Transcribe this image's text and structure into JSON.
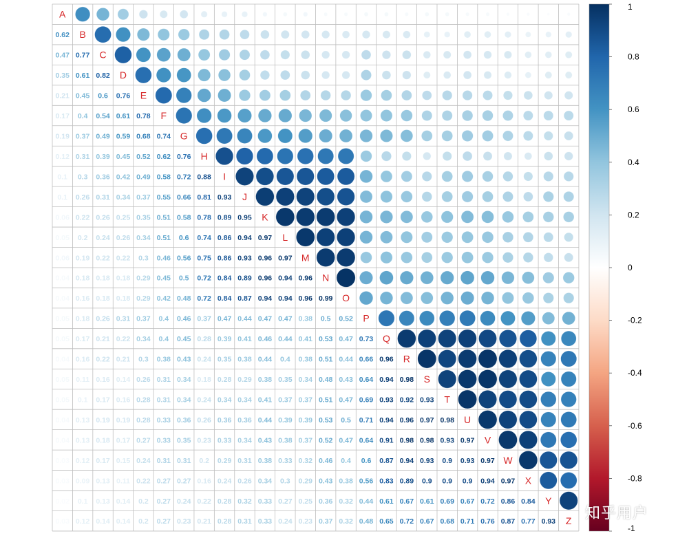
{
  "chart_data": {
    "type": "heatmap",
    "subtype": "correlation-matrix-mixed",
    "upper_method": "circle",
    "lower_method": "number",
    "variables": [
      "A",
      "B",
      "C",
      "D",
      "E",
      "F",
      "G",
      "H",
      "I",
      "J",
      "K",
      "L",
      "M",
      "N",
      "O",
      "P",
      "Q",
      "R",
      "S",
      "T",
      "U",
      "V",
      "W",
      "X",
      "Y",
      "Z"
    ],
    "lower_triangle": [
      [],
      [
        0.62
      ],
      [
        0.47,
        0.77
      ],
      [
        0.35,
        0.61,
        0.82
      ],
      [
        0.21,
        0.45,
        0.6,
        0.76
      ],
      [
        0.17,
        0.4,
        0.54,
        0.61,
        0.78
      ],
      [
        0.19,
        0.37,
        0.49,
        0.59,
        0.68,
        0.74
      ],
      [
        0.12,
        0.31,
        0.39,
        0.45,
        0.52,
        0.62,
        0.76
      ],
      [
        0.1,
        0.3,
        0.36,
        0.42,
        0.49,
        0.58,
        0.72,
        0.88
      ],
      [
        0.1,
        0.26,
        0.31,
        0.34,
        0.37,
        0.55,
        0.66,
        0.81,
        0.93
      ],
      [
        0.06,
        0.22,
        0.26,
        0.25,
        0.35,
        0.51,
        0.58,
        0.78,
        0.89,
        0.95
      ],
      [
        0.05,
        0.2,
        0.24,
        0.26,
        0.34,
        0.51,
        0.6,
        0.74,
        0.86,
        0.94,
        0.97
      ],
      [
        0.06,
        0.19,
        0.22,
        0.22,
        0.3,
        0.46,
        0.56,
        0.75,
        0.86,
        0.93,
        0.96,
        0.97
      ],
      [
        0.04,
        0.18,
        0.18,
        0.18,
        0.29,
        0.45,
        0.5,
        0.72,
        0.84,
        0.89,
        0.96,
        0.94,
        0.96
      ],
      [
        0.04,
        0.16,
        0.18,
        0.18,
        0.29,
        0.42,
        0.48,
        0.72,
        0.84,
        0.87,
        0.94,
        0.94,
        0.96,
        0.99
      ],
      [
        0.05,
        0.18,
        0.26,
        0.31,
        0.37,
        0.4,
        0.46,
        0.37,
        0.47,
        0.44,
        0.47,
        0.47,
        0.38,
        0.5,
        0.52
      ],
      [
        0.05,
        0.17,
        0.21,
        0.22,
        0.34,
        0.4,
        0.45,
        0.28,
        0.39,
        0.41,
        0.46,
        0.44,
        0.41,
        0.53,
        0.47,
        0.73
      ],
      [
        0.04,
        0.16,
        0.22,
        0.21,
        0.3,
        0.38,
        0.43,
        0.24,
        0.35,
        0.38,
        0.44,
        0.4,
        0.38,
        0.51,
        0.44,
        0.66,
        0.96
      ],
      [
        0.05,
        0.11,
        0.16,
        0.14,
        0.26,
        0.31,
        0.34,
        0.18,
        0.28,
        0.29,
        0.38,
        0.35,
        0.34,
        0.48,
        0.43,
        0.64,
        0.94,
        0.98
      ],
      [
        0.05,
        0.1,
        0.17,
        0.16,
        0.28,
        0.31,
        0.34,
        0.24,
        0.34,
        0.34,
        0.41,
        0.37,
        0.37,
        0.51,
        0.47,
        0.69,
        0.93,
        0.92,
        0.93
      ],
      [
        0.04,
        0.13,
        0.19,
        0.19,
        0.28,
        0.33,
        0.36,
        0.26,
        0.36,
        0.36,
        0.44,
        0.39,
        0.39,
        0.53,
        0.5,
        0.71,
        0.94,
        0.96,
        0.97,
        0.98
      ],
      [
        0.04,
        0.13,
        0.18,
        0.17,
        0.27,
        0.33,
        0.35,
        0.23,
        0.33,
        0.34,
        0.43,
        0.38,
        0.37,
        0.52,
        0.47,
        0.64,
        0.91,
        0.98,
        0.98,
        0.93,
        0.97
      ],
      [
        0.03,
        0.12,
        0.17,
        0.15,
        0.24,
        0.31,
        0.31,
        0.2,
        0.29,
        0.31,
        0.38,
        0.33,
        0.32,
        0.46,
        0.4,
        0.6,
        0.87,
        0.94,
        0.93,
        0.9,
        0.93,
        0.97
      ],
      [
        0.03,
        0.09,
        0.13,
        0.11,
        0.22,
        0.27,
        0.27,
        0.16,
        0.24,
        0.26,
        0.34,
        0.3,
        0.29,
        0.43,
        0.38,
        0.56,
        0.83,
        0.89,
        0.9,
        0.9,
        0.9,
        0.94,
        0.97
      ],
      [
        0.02,
        0.1,
        0.13,
        0.14,
        0.2,
        0.27,
        0.24,
        0.22,
        0.28,
        0.32,
        0.33,
        0.27,
        0.25,
        0.36,
        0.32,
        0.44,
        0.61,
        0.67,
        0.61,
        0.69,
        0.67,
        0.72,
        0.86,
        0.84
      ],
      [
        0.03,
        0.12,
        0.14,
        0.14,
        0.2,
        0.27,
        0.23,
        0.21,
        0.28,
        0.31,
        0.33,
        0.24,
        0.23,
        0.37,
        0.32,
        0.48,
        0.65,
        0.72,
        0.67,
        0.68,
        0.71,
        0.76,
        0.87,
        0.77,
        0.93
      ]
    ],
    "colorbar": {
      "ticks": [
        "1",
        "0.8",
        "0.6",
        "0.4",
        "0.2",
        "0",
        "-0.2",
        "-0.4",
        "-0.6",
        "-0.8",
        "-1"
      ],
      "range": [
        -1,
        1
      ],
      "colors": [
        "#67001F",
        "#B2182B",
        "#D6604D",
        "#F4A582",
        "#FDDBC7",
        "#FFFFFF",
        "#D1E5F0",
        "#92C5DE",
        "#4393C3",
        "#2166AC",
        "#053061"
      ]
    },
    "diagonal_label_color": "#D62728",
    "grid_color": "#BEBEBE"
  },
  "watermark": "知乎用户"
}
